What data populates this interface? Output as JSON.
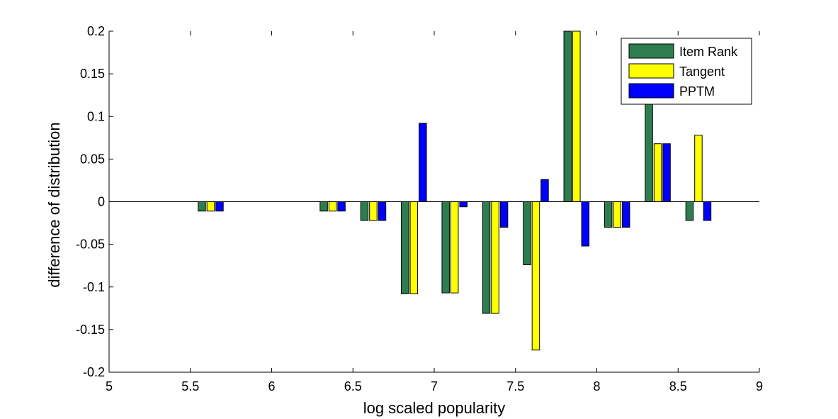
{
  "chart_data": {
    "type": "bar",
    "title": "",
    "xlabel": "log scaled popularity",
    "ylabel": "difference of distribution",
    "xlim": [
      5,
      9
    ],
    "ylim": [
      -0.2,
      0.2
    ],
    "x_ticks": [
      "5",
      "5.5",
      "6",
      "6.5",
      "7",
      "7.5",
      "8",
      "8.5",
      "9"
    ],
    "y_ticks": [
      "-0.2",
      "-0.15",
      "-0.1",
      "-0.05",
      "0",
      "0.05",
      "0.1",
      "0.15",
      "0.2"
    ],
    "grid": false,
    "legend_position": "top-right",
    "x": [
      5.625,
      6.375,
      6.625,
      6.875,
      7.125,
      7.375,
      7.625,
      7.875,
      8.125,
      8.375,
      8.625
    ],
    "series": [
      {
        "name": "Item Rank",
        "color": "#2e7d4f",
        "values": [
          -0.011,
          -0.011,
          -0.022,
          -0.108,
          -0.107,
          -0.131,
          -0.074,
          0.2,
          -0.03,
          0.12,
          -0.022
        ]
      },
      {
        "name": "Tangent",
        "color": "#ffff00",
        "values": [
          -0.011,
          -0.011,
          -0.022,
          -0.108,
          -0.107,
          -0.131,
          -0.174,
          0.2,
          -0.03,
          0.068,
          0.078
        ]
      },
      {
        "name": "PPTM",
        "color": "#0000ff",
        "values": [
          -0.011,
          -0.011,
          -0.022,
          0.092,
          -0.006,
          -0.03,
          0.026,
          -0.052,
          -0.03,
          0.068,
          -0.022
        ]
      }
    ]
  }
}
